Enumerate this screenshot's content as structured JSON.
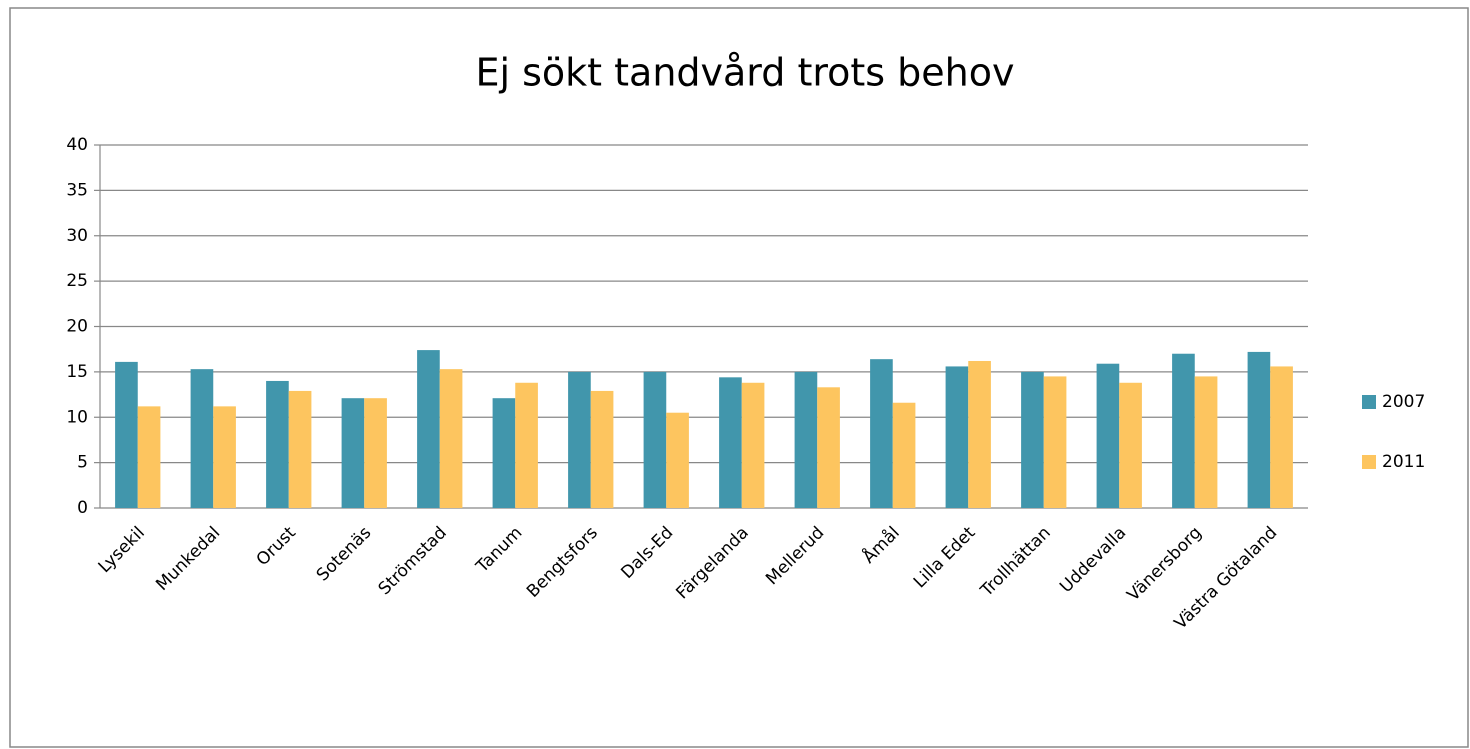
{
  "chart_data": {
    "type": "bar",
    "title": "Ej sökt tandvård trots behov",
    "categories": [
      "Lysekil",
      "Munkedal",
      "Orust",
      "Sotenäs",
      "Strömstad",
      "Tanum",
      "Bengtsfors",
      "Dals-Ed",
      "Färgelanda",
      "Mellerud",
      "Åmål",
      "Lilla Edet",
      "Trollhättan",
      "Uddevalla",
      "Vänersborg",
      "Västra Götaland"
    ],
    "series": [
      {
        "name": "2007",
        "color": "#4196ac",
        "values": [
          16.1,
          15.3,
          14.0,
          12.1,
          17.4,
          12.1,
          15.0,
          15.0,
          14.4,
          15.0,
          16.4,
          15.6,
          15.0,
          15.9,
          17.0,
          17.2
        ]
      },
      {
        "name": "2011",
        "color": "#fdc55f",
        "values": [
          11.2,
          11.2,
          12.9,
          12.1,
          15.3,
          13.8,
          12.9,
          10.5,
          13.8,
          13.3,
          11.6,
          16.2,
          14.5,
          13.8,
          14.5,
          15.6
        ]
      }
    ],
    "ylim": [
      0,
      40
    ],
    "yticks": [
      0,
      5,
      10,
      15,
      20,
      25,
      30,
      35,
      40
    ],
    "grid": true,
    "legend": "right"
  }
}
